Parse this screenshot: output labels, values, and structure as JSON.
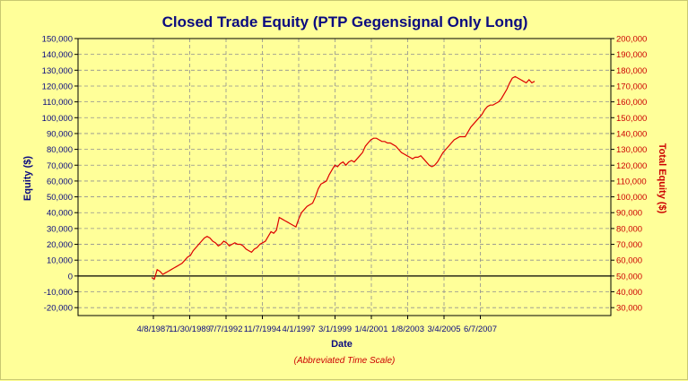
{
  "chart_data": {
    "type": "line",
    "title": "Closed Trade Equity (PTP Gegensignal Only Long)",
    "xlabel": "Date",
    "ylabel": "Equity ($)",
    "y2label": "Total Equity ($)",
    "note": "(Abbreviated Time Scale)",
    "ylim": [
      -25000,
      150000
    ],
    "y2lim": [
      25000,
      200000
    ],
    "yticks": [
      "150,000",
      "140,000",
      "130,000",
      "120,000",
      "110,000",
      "100,000",
      "90,000",
      "80,000",
      "70,000",
      "60,000",
      "50,000",
      "40,000",
      "30,000",
      "20,000",
      "10,000",
      "0",
      "-10,000",
      "-20,000"
    ],
    "y2ticks": [
      "200,000",
      "190,000",
      "180,000",
      "170,000",
      "160,000",
      "150,000",
      "140,000",
      "130,000",
      "120,000",
      "110,000",
      "100,000",
      "90,000",
      "80,000",
      "70,000",
      "60,000",
      "50,000",
      "40,000",
      "30,000"
    ],
    "xticks": [
      "4/8/1987",
      "11/30/1989",
      "7/7/1992",
      "11/7/1994",
      "4/1/1997",
      "3/1/1999",
      "1/4/2001",
      "1/8/2003",
      "3/4/2005",
      "6/7/2007"
    ],
    "grid": true,
    "line_color": "#dd0000",
    "series": [
      {
        "values": [
          -1000,
          -2000,
          4000,
          3000,
          1000,
          2000,
          3000,
          4000,
          5000,
          6000,
          7000,
          8000,
          10000,
          12000,
          13000,
          16000,
          18000,
          20000,
          22000,
          24000,
          25000,
          24000,
          22000,
          21000,
          19000,
          20000,
          22000,
          21000,
          19000,
          20000,
          21000,
          20000,
          20000,
          19000,
          17000,
          16000,
          15000,
          17000,
          18000,
          20000,
          21000,
          22000,
          25000,
          28000,
          27000,
          29000,
          37000,
          36000,
          35000,
          34000,
          33000,
          32000,
          31000,
          36000,
          40000,
          42000,
          44000,
          45000,
          46000,
          50000,
          55000,
          58000,
          59000,
          60000,
          64000,
          67000,
          70000,
          69000,
          71000,
          72000,
          70000,
          72000,
          73000,
          72000,
          74000,
          76000,
          78000,
          82000,
          84000,
          86000,
          87000,
          87000,
          86000,
          85000,
          85000,
          84000,
          84000,
          83000,
          82000,
          80000,
          78000,
          77000,
          76000,
          75000,
          74000,
          75000,
          75000,
          76000,
          74000,
          72000,
          70000,
          69000,
          70000,
          72000,
          75000,
          78000,
          80000,
          82000,
          84000,
          86000,
          87000,
          88000,
          88000,
          88000,
          91000,
          94000,
          96000,
          98000,
          100000,
          102000,
          105000,
          107000,
          108000,
          108000,
          109000,
          110000,
          112000,
          115000,
          118000,
          122000,
          125000,
          126000,
          125000,
          124000,
          123000,
          122000,
          124000,
          122000,
          123000
        ]
      }
    ]
  }
}
